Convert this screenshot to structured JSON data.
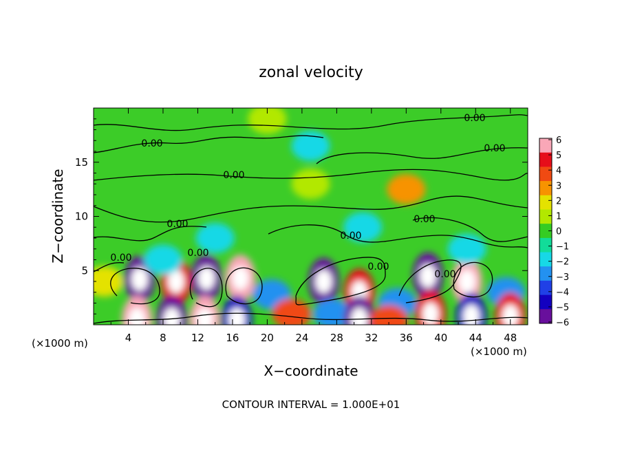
{
  "chart_data": {
    "type": "heatmap",
    "title": "zonal velocity",
    "xlabel": "X−coordinate",
    "ylabel": "Z−coordinate",
    "x_units_left": "(×1000 m)",
    "x_units_right": "(×1000 m)",
    "x_ticks": [
      "4",
      "8",
      "12",
      "16",
      "20",
      "24",
      "28",
      "32",
      "36",
      "40",
      "44",
      "48"
    ],
    "y_ticks": [
      "5",
      "10",
      "15"
    ],
    "xlim": [
      0,
      50
    ],
    "ylim": [
      0,
      20
    ],
    "colorbar": {
      "ticks": [
        "6",
        "5",
        "4",
        "3",
        "2",
        "1",
        "0",
        "−1",
        "−2",
        "−3",
        "−4",
        "−5",
        "−6"
      ],
      "range": [
        -6,
        6
      ],
      "colors": [
        "#f9a7b7",
        "#e60e1a",
        "#f04a12",
        "#f79300",
        "#e4e200",
        "#b2e800",
        "#35cc23",
        "#12dc99",
        "#17d8e6",
        "#2391f0",
        "#2040e6",
        "#1300c0",
        "#680f9c"
      ]
    },
    "contour_labels": [
      "0.00",
      "0.00",
      "0.00",
      "0.00",
      "0.00",
      "0.00",
      "0.00",
      "0.00",
      "0.00",
      "0.00",
      "0.00"
    ],
    "footer": "CONTOUR INTERVAL = 1.000E+01",
    "features": [
      {
        "x": 5.3,
        "z": 4.2,
        "value": -6
      },
      {
        "x": 9.5,
        "z": 4.0,
        "value": 5
      },
      {
        "x": 13.0,
        "z": 4.3,
        "value": -6
      },
      {
        "x": 16.9,
        "z": 4.3,
        "value": 6
      },
      {
        "x": 20.5,
        "z": 2.8,
        "value": -3
      },
      {
        "x": 26.5,
        "z": 4.0,
        "value": -6
      },
      {
        "x": 30.6,
        "z": 3.0,
        "value": 5
      },
      {
        "x": 35.0,
        "z": 2.0,
        "value": -3
      },
      {
        "x": 38.5,
        "z": 4.5,
        "value": -6
      },
      {
        "x": 43.0,
        "z": 4.0,
        "value": 6
      },
      {
        "x": 47.5,
        "z": 3.0,
        "value": -3
      },
      {
        "x": 1.2,
        "z": 4.0,
        "value": 2
      },
      {
        "x": 5.0,
        "z": 0.5,
        "value": 6
      },
      {
        "x": 9.0,
        "z": 0.5,
        "value": -6
      },
      {
        "x": 12.8,
        "z": 0.5,
        "value": 6
      },
      {
        "x": 16.5,
        "z": 0.5,
        "value": -5
      },
      {
        "x": 22.8,
        "z": 1.0,
        "value": 4
      },
      {
        "x": 27.5,
        "z": 1.0,
        "value": -3
      },
      {
        "x": 30.6,
        "z": 0.5,
        "value": -6
      },
      {
        "x": 34.0,
        "z": 0.4,
        "value": 4
      },
      {
        "x": 38.8,
        "z": 1.0,
        "value": 5
      },
      {
        "x": 43.5,
        "z": 0.8,
        "value": -5
      },
      {
        "x": 48.0,
        "z": 0.8,
        "value": 5
      },
      {
        "x": 36.0,
        "z": 12.5,
        "value": 3
      },
      {
        "x": 25.0,
        "z": 13.0,
        "value": 1.5
      },
      {
        "x": 14.0,
        "z": 8.0,
        "value": -2
      },
      {
        "x": 31.0,
        "z": 9.0,
        "value": -2
      },
      {
        "x": 25.0,
        "z": 16.5,
        "value": -1.5
      },
      {
        "x": 8.0,
        "z": 6.0,
        "value": -1.5
      },
      {
        "x": 43.0,
        "z": 7.0,
        "value": -1.5
      },
      {
        "x": 20.0,
        "z": 19.0,
        "value": 1
      }
    ]
  }
}
